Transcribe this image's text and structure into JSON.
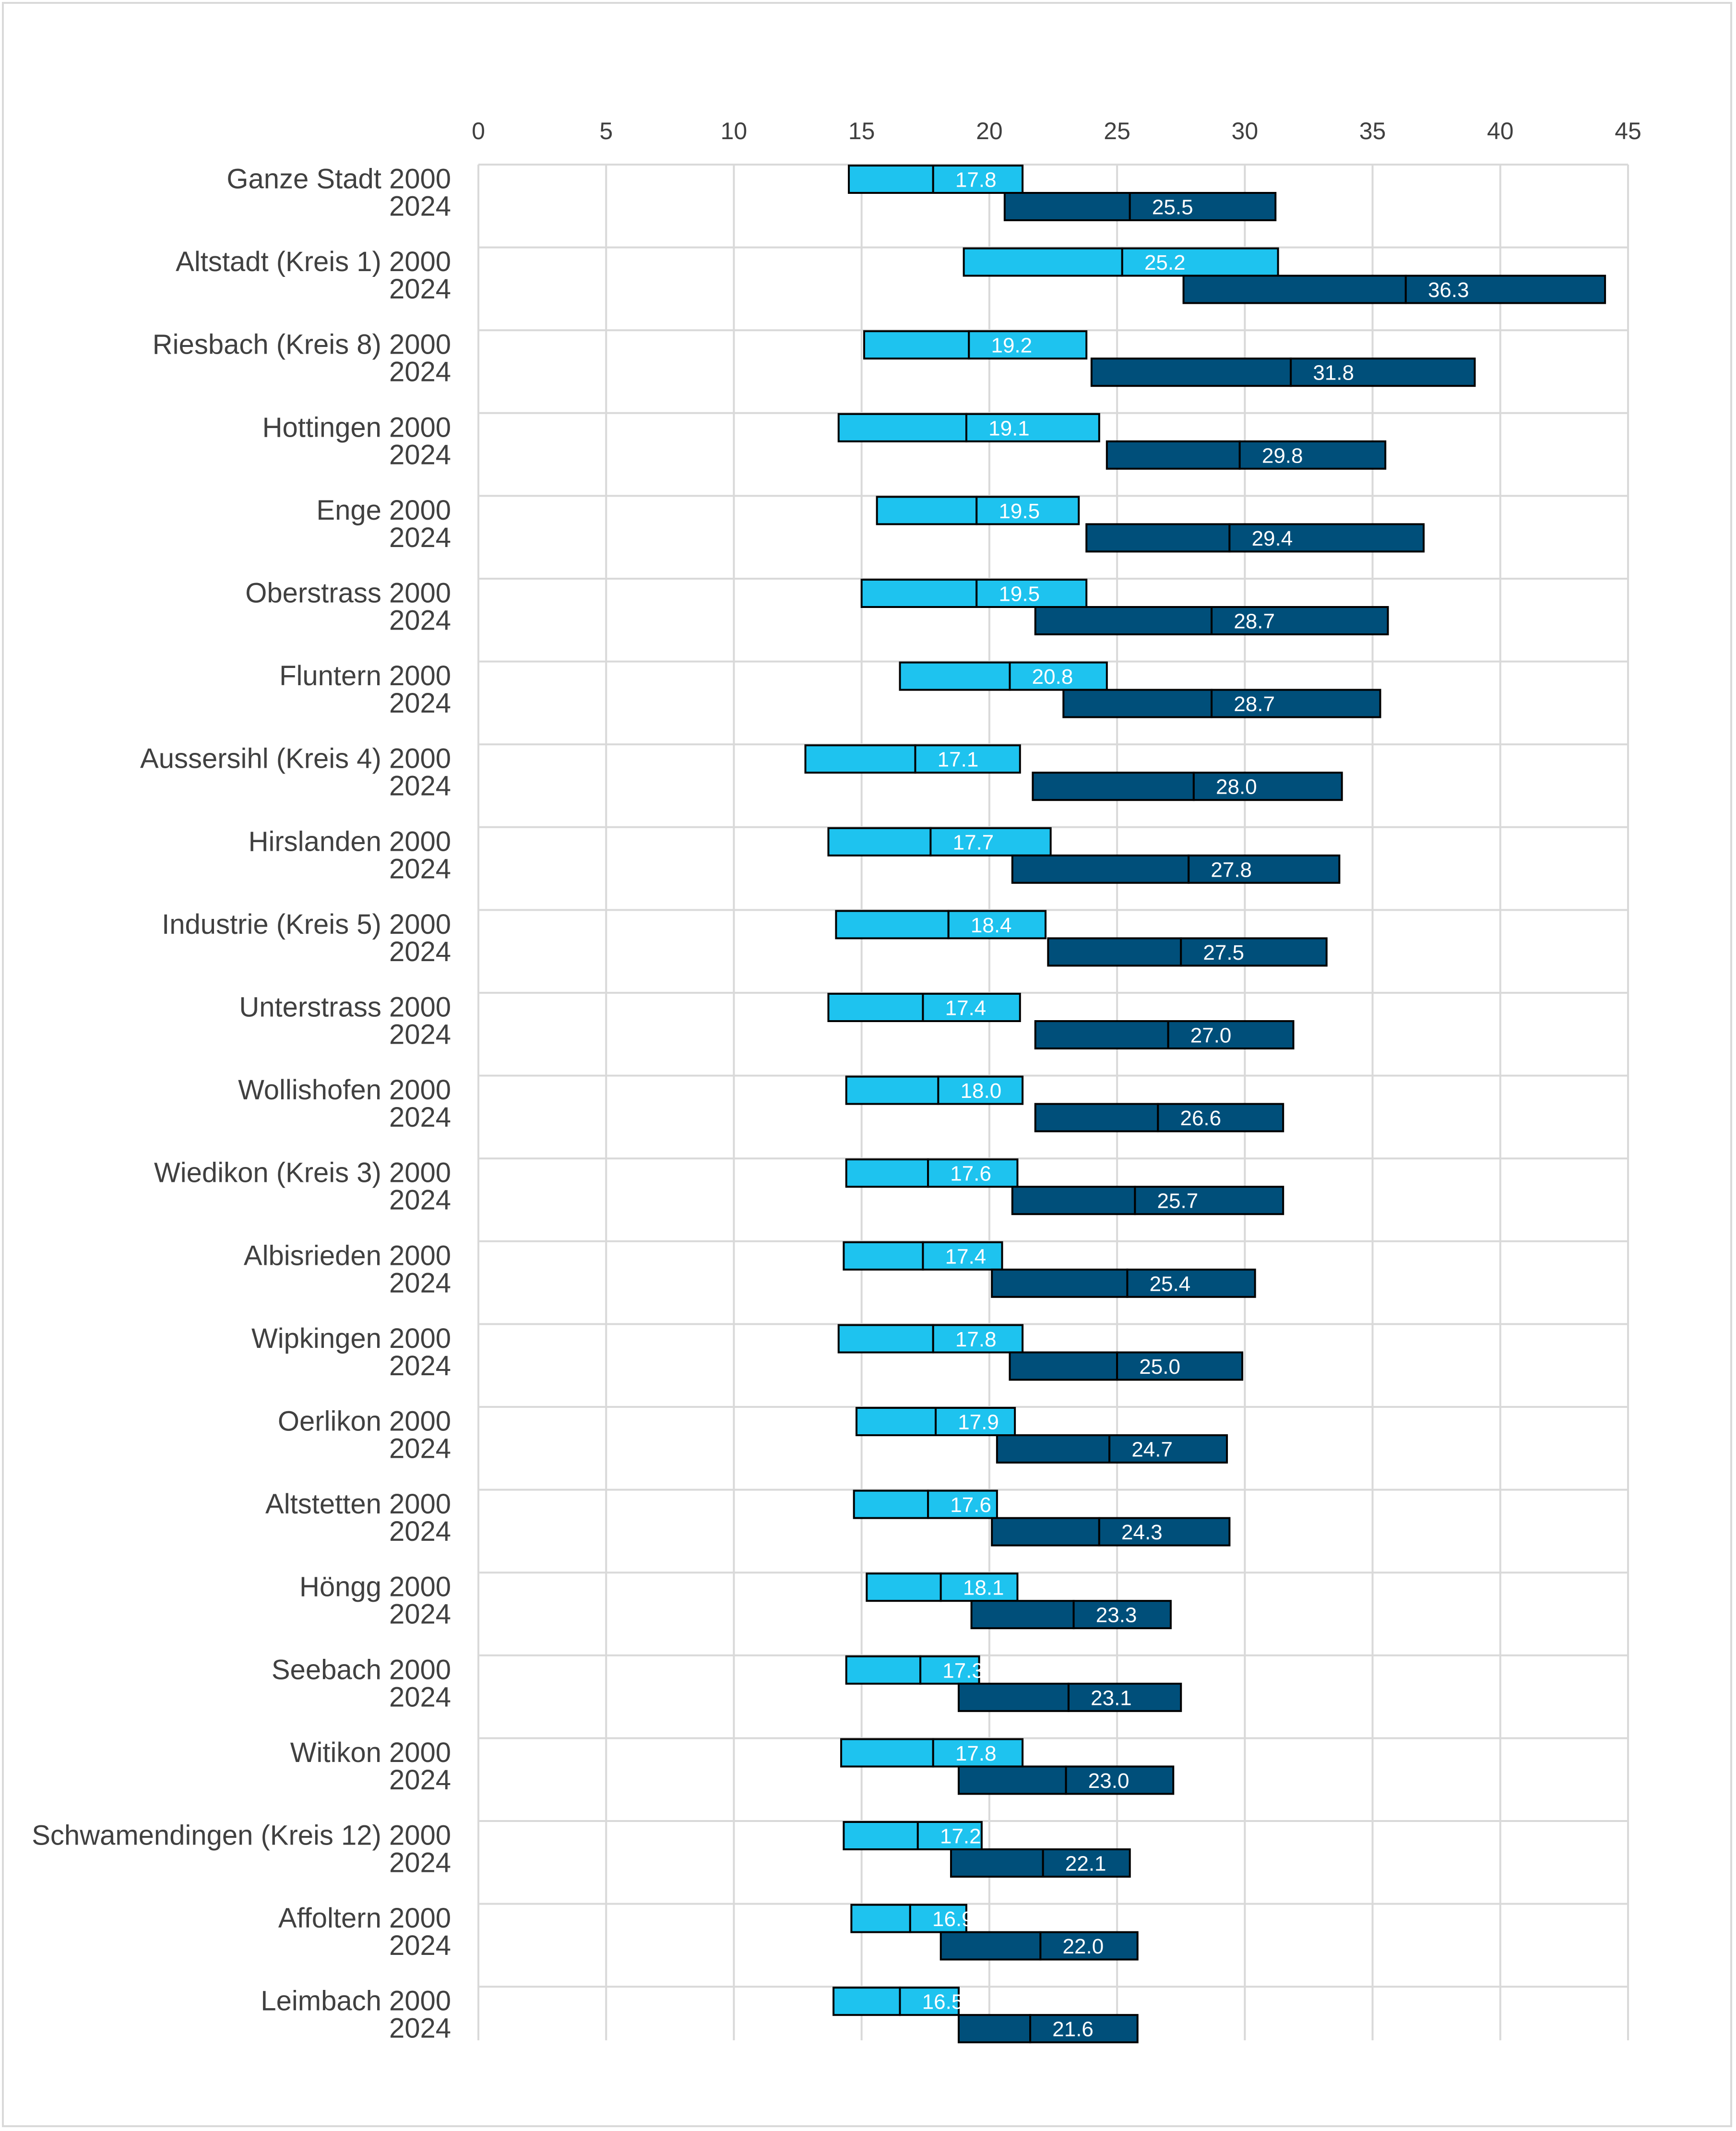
{
  "chart_data": {
    "type": "bar",
    "subtype": "floating-range-with-median",
    "x": {
      "min": 0,
      "max": 45,
      "ticks": [
        0,
        5,
        10,
        15,
        20,
        25,
        30,
        35,
        40,
        45
      ]
    },
    "grid": true,
    "colors": {
      "2000": "#1ec3ef",
      "2024": "#004f7a",
      "grid": "#d9d9d9",
      "text": "#404040",
      "border": "#000000"
    },
    "groups": [
      {
        "name": "Ganze Stadt",
        "r2000": [
          14.5,
          17.8,
          21.3
        ],
        "r2024": [
          20.6,
          25.5,
          31.2
        ]
      },
      {
        "name": "Altstadt (Kreis 1)",
        "r2000": [
          19.0,
          25.2,
          31.3
        ],
        "r2024": [
          27.6,
          36.3,
          44.1
        ]
      },
      {
        "name": "Riesbach (Kreis 8)",
        "r2000": [
          15.1,
          19.2,
          23.8
        ],
        "r2024": [
          24.0,
          31.8,
          39.0
        ]
      },
      {
        "name": "Hottingen",
        "r2000": [
          14.1,
          19.1,
          24.3
        ],
        "r2024": [
          24.6,
          29.8,
          35.5
        ]
      },
      {
        "name": "Enge",
        "r2000": [
          15.6,
          19.5,
          23.5
        ],
        "r2024": [
          23.8,
          29.4,
          37.0
        ]
      },
      {
        "name": "Oberstrass",
        "r2000": [
          15.0,
          19.5,
          23.8
        ],
        "r2024": [
          21.8,
          28.7,
          35.6
        ]
      },
      {
        "name": "Fluntern",
        "r2000": [
          16.5,
          20.8,
          24.6
        ],
        "r2024": [
          22.9,
          28.7,
          35.3
        ]
      },
      {
        "name": "Aussersihl (Kreis 4)",
        "r2000": [
          12.8,
          17.1,
          21.2
        ],
        "r2024": [
          21.7,
          28.0,
          33.8
        ]
      },
      {
        "name": "Hirslanden",
        "r2000": [
          13.7,
          17.7,
          22.4
        ],
        "r2024": [
          20.9,
          27.8,
          33.7
        ]
      },
      {
        "name": "Industrie (Kreis 5)",
        "r2000": [
          14.0,
          18.4,
          22.2
        ],
        "r2024": [
          22.3,
          27.5,
          33.2
        ]
      },
      {
        "name": "Unterstrass",
        "r2000": [
          13.7,
          17.4,
          21.2
        ],
        "r2024": [
          21.8,
          27.0,
          31.9
        ]
      },
      {
        "name": "Wollishofen",
        "r2000": [
          14.4,
          18.0,
          21.3
        ],
        "r2024": [
          21.8,
          26.6,
          31.5
        ]
      },
      {
        "name": "Wiedikon (Kreis 3)",
        "r2000": [
          14.4,
          17.6,
          21.1
        ],
        "r2024": [
          20.9,
          25.7,
          31.5
        ]
      },
      {
        "name": "Albisrieden",
        "r2000": [
          14.3,
          17.4,
          20.5
        ],
        "r2024": [
          20.1,
          25.4,
          30.4
        ]
      },
      {
        "name": "Wipkingen",
        "r2000": [
          14.1,
          17.8,
          21.3
        ],
        "r2024": [
          20.8,
          25.0,
          29.9
        ]
      },
      {
        "name": "Oerlikon",
        "r2000": [
          14.8,
          17.9,
          21.0
        ],
        "r2024": [
          20.3,
          24.7,
          29.3
        ]
      },
      {
        "name": "Altstetten",
        "r2000": [
          14.7,
          17.6,
          20.3
        ],
        "r2024": [
          20.1,
          24.3,
          29.4
        ]
      },
      {
        "name": "Höngg",
        "r2000": [
          15.2,
          18.1,
          21.1
        ],
        "r2024": [
          19.3,
          23.3,
          27.1
        ]
      },
      {
        "name": "Seebach",
        "r2000": [
          14.4,
          17.3,
          19.6
        ],
        "r2024": [
          18.8,
          23.1,
          27.5
        ]
      },
      {
        "name": "Witikon",
        "r2000": [
          14.2,
          17.8,
          21.3
        ],
        "r2024": [
          18.8,
          23.0,
          27.2
        ]
      },
      {
        "name": "Schwamendingen (Kreis 12)",
        "r2000": [
          14.3,
          17.2,
          19.7
        ],
        "r2024": [
          18.5,
          22.1,
          25.5
        ]
      },
      {
        "name": "Affoltern",
        "r2000": [
          14.6,
          16.9,
          19.1
        ],
        "r2024": [
          18.1,
          22.0,
          25.8
        ]
      },
      {
        "name": "Leimbach",
        "r2000": [
          13.9,
          16.5,
          18.8
        ],
        "r2024": [
          18.8,
          21.6,
          25.8
        ]
      }
    ],
    "year_labels": {
      "first": "2000",
      "second": "2024"
    }
  }
}
